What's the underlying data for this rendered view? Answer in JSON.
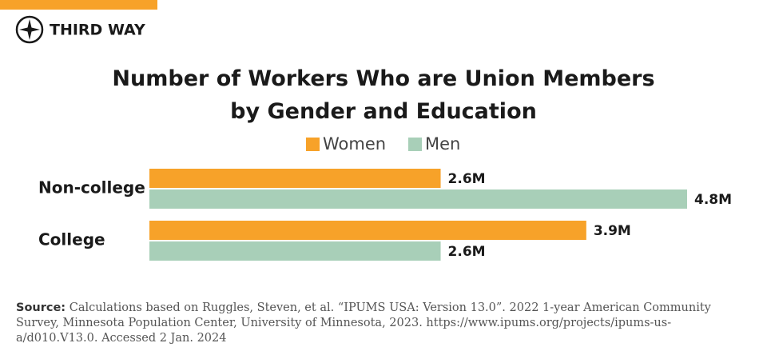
{
  "brand": "THIRD WAY",
  "chart_data": {
    "type": "bar",
    "orientation": "horizontal",
    "title": "Number of Workers Who are Union Members by Gender and Education",
    "categories": [
      "Non-college",
      "College"
    ],
    "series": [
      {
        "name": "Women",
        "color": "#f7a229",
        "values": [
          2.6,
          3.9
        ],
        "value_labels": [
          "2.6M",
          "3.9M"
        ]
      },
      {
        "name": "Men",
        "color": "#a8cfb8",
        "values": [
          4.8,
          2.6
        ],
        "value_labels": [
          "4.8M",
          "2.6M"
        ]
      }
    ]
  },
  "source": {
    "label": "Source:",
    "text": "Calculations based on Ruggles, Steven, et al. “IPUMS USA: Version 13.0”. 2022 1-year American Community Survey, Minnesota Population Center, University of Minnesota, 2023. https://www.ipums.org/projects/ipums-us-a/d010.V13.0. Accessed 2 Jan. 2024"
  }
}
